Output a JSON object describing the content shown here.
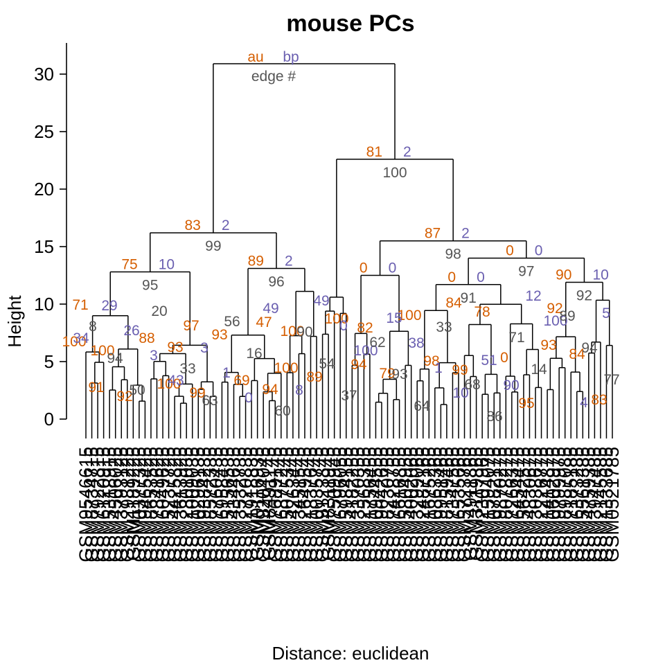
{
  "colors": {
    "au": "#D55E00",
    "bp": "#6A5FB0",
    "edge": "#555555",
    "line": "#000000"
  },
  "chart_data": {
    "type": "dendrogram",
    "title": "mouse PCs",
    "ylabel": "Height",
    "xlabel": "Distance:  euclidean",
    "ylim": [
      0,
      32
    ],
    "yticks": [
      0,
      5,
      10,
      15,
      20,
      25,
      30
    ],
    "legend": {
      "au": "au",
      "bp": "bp",
      "edge": "edge #"
    },
    "n_leaves": 90,
    "leaf_label_prefix": "GSM",
    "leaf_label_example": "GSM5796567",
    "clusters": [
      {
        "id": "root",
        "height": 30.9,
        "au": "",
        "bp": "",
        "edge": ""
      },
      {
        "id": "L",
        "height": 16.2,
        "au": "83",
        "bp": "2",
        "edge": "99"
      },
      {
        "id": "R",
        "height": 22.6,
        "au": "81",
        "bp": "2",
        "edge": "100"
      },
      {
        "id": "LA",
        "height": 12.8,
        "au": "75",
        "bp": "10",
        "edge": "95"
      },
      {
        "id": "LB",
        "height": 13.1,
        "au": "89",
        "bp": "2",
        "edge": "96"
      },
      {
        "id": "RA",
        "height": 10.6,
        "au": "",
        "bp": "",
        "edge": ""
      },
      {
        "id": "RB",
        "height": 15.5,
        "au": "87",
        "bp": "2",
        "edge": "98"
      },
      {
        "id": "RBa",
        "height": 12.5,
        "au": "0",
        "bp": "0",
        "edge": ""
      },
      {
        "id": "RBb",
        "height": 14.0,
        "au": "0",
        "bp": "0",
        "edge": "97"
      },
      {
        "id": "RBb1",
        "height": 11.7,
        "au": "0",
        "bp": "0",
        "edge": "91"
      },
      {
        "id": "RBb2",
        "height": 11.9,
        "au": "90",
        "bp": "10",
        "edge": "92"
      }
    ],
    "scattered_labels": {
      "au": [
        "71",
        "93",
        "94",
        "82",
        "99",
        "92",
        "100",
        "99",
        "100",
        "79",
        "78",
        "84",
        "92",
        "93",
        "89",
        "100",
        "0",
        "83",
        "88",
        "69",
        "100",
        "98",
        "95",
        "100",
        "100",
        "47",
        "94",
        "84",
        "93",
        "91",
        "97",
        "100"
      ],
      "bp": [
        "29",
        "3",
        "8",
        "15",
        "51",
        "4",
        "26",
        "1",
        "49",
        "38",
        "90",
        "5",
        "3",
        "0",
        "0",
        "1",
        "12",
        "34",
        "43",
        "49",
        "100",
        "10",
        "100"
      ],
      "edge": [
        "8",
        "33",
        "60",
        "62",
        "68",
        "89",
        "94",
        "63",
        "90",
        "93",
        "86",
        "94",
        "50",
        "56",
        "54",
        "64",
        "71",
        "77",
        "20",
        "16",
        "37",
        "33",
        "14"
      ]
    }
  }
}
